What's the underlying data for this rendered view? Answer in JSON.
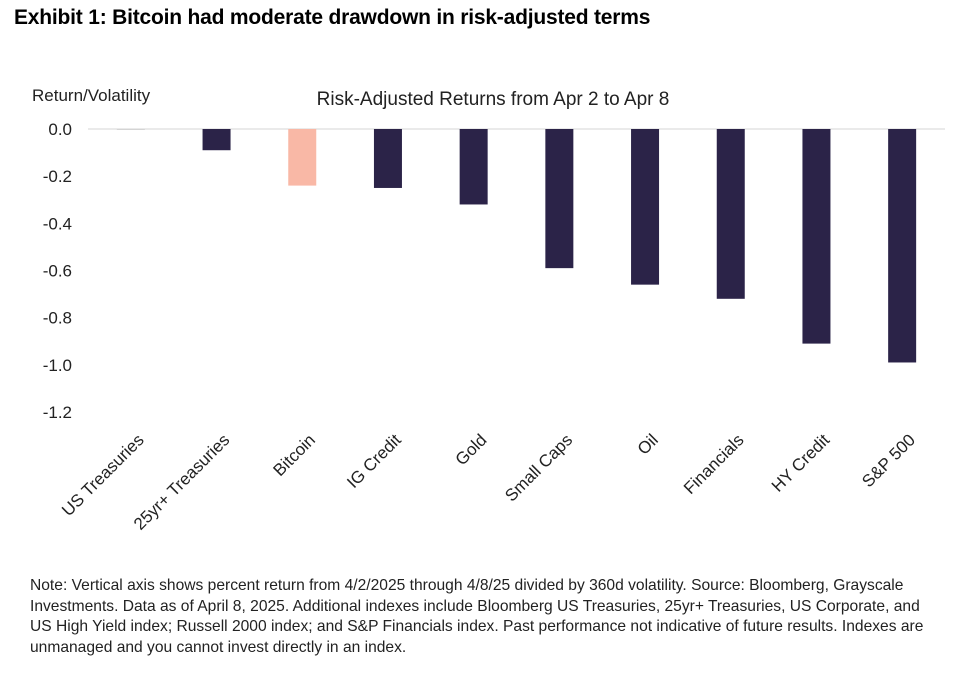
{
  "exhibit_title": "Exhibit 1: Bitcoin had moderate drawdown in risk-adjusted terms",
  "note": "Note: Vertical axis shows percent return from 4/2/2025 through 4/8/25 divided by 360d volatility. Source: Bloomberg, Grayscale Investments. Data as of April 8, 2025. Additional indexes include Bloomberg US Treasuries, 25yr+ Treasuries, US Corporate, and US High Yield index; Russell 2000 index; and S&P Financials index. Past performance not indicative of future results. Indexes are unmanaged and you cannot invest directly in an index.",
  "colors": {
    "bar": "#2b2348",
    "highlight": "#f9b8a6",
    "zero_line": "#d4d4d4"
  },
  "chart_data": {
    "type": "bar",
    "title": "Risk-Adjusted Returns from Apr 2 to Apr 8",
    "ylabel": "Return/Volatility",
    "xlabel": "",
    "ylim": [
      -1.2,
      0.0
    ],
    "yticks": [
      "0.0",
      "-0.2",
      "-0.4",
      "-0.6",
      "-0.8",
      "-1.0",
      "-1.2"
    ],
    "ytick_values": [
      0.0,
      -0.2,
      -0.4,
      -0.6,
      -0.8,
      -1.0,
      -1.2
    ],
    "categories": [
      "US Treasuries",
      "25yr+ Treasuries",
      "Bitcoin",
      "IG Credit",
      "Gold",
      "Small Caps",
      "Oil",
      "Financials",
      "HY Credit",
      "S&P 500"
    ],
    "values": [
      0.0,
      -0.09,
      -0.24,
      -0.25,
      -0.32,
      -0.59,
      -0.66,
      -0.72,
      -0.91,
      -0.99
    ],
    "highlight": "Bitcoin",
    "grid": false
  }
}
